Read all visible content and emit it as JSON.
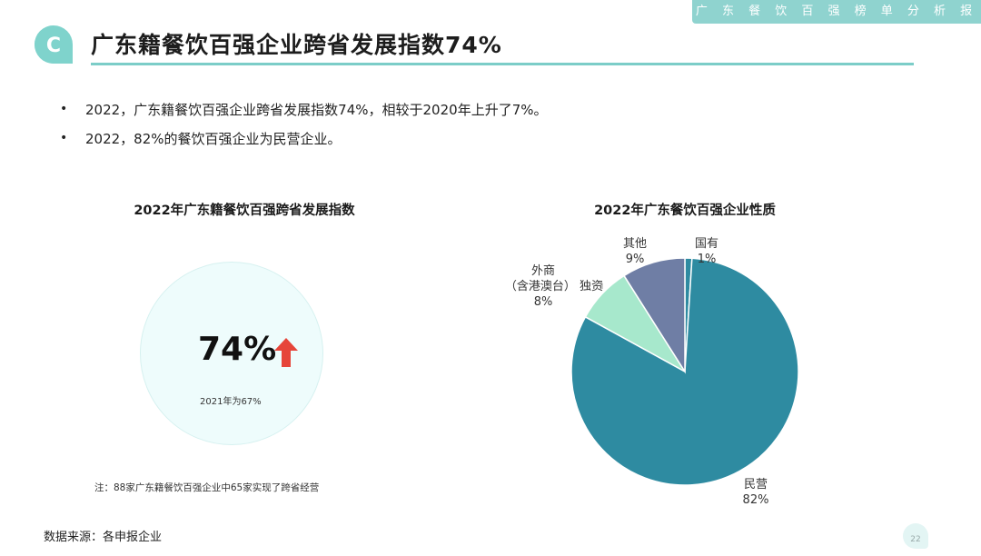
{
  "header": {
    "report_tag": "广 东 餐 饮 百 强 榜 单 分 析 报 告",
    "title": "广东籍餐饮百强企业跨省发展指数74%",
    "logo_letter": "C"
  },
  "bullets": [
    "2022，广东籍餐饮百强企业跨省发展指数74%，相较于2020年上升了7%。",
    "2022，82%的餐饮百强企业为民营企业。"
  ],
  "left_panel": {
    "chart_title": "2022年广东籍餐饮百强跨省发展指数",
    "value": "74%",
    "note": "2021年为67%",
    "footnote": "注：88家广东籍餐饮百强企业中65家实现了跨省经营",
    "arrow_color": "#e6453a"
  },
  "source": "数据来源：各申报企业",
  "page_number": "22",
  "chart_data": {
    "type": "pie",
    "title": "2022年广东餐饮百强企业性质",
    "slices": [
      {
        "name": "民营",
        "value": 82,
        "label": "82%",
        "color": "#2e8ba1"
      },
      {
        "name": "外商（含港澳台）独资",
        "value": 8,
        "label": "8%",
        "color": "#a7e8cc"
      },
      {
        "name": "其他",
        "value": 9,
        "label": "9%",
        "color": "#6f7ea5"
      },
      {
        "name": "国有",
        "value": 1,
        "label": "1%",
        "color": "#2e8ba1"
      }
    ]
  },
  "colors": {
    "accent": "#7ccdc8",
    "tag_bg": "#8fd3cf"
  }
}
